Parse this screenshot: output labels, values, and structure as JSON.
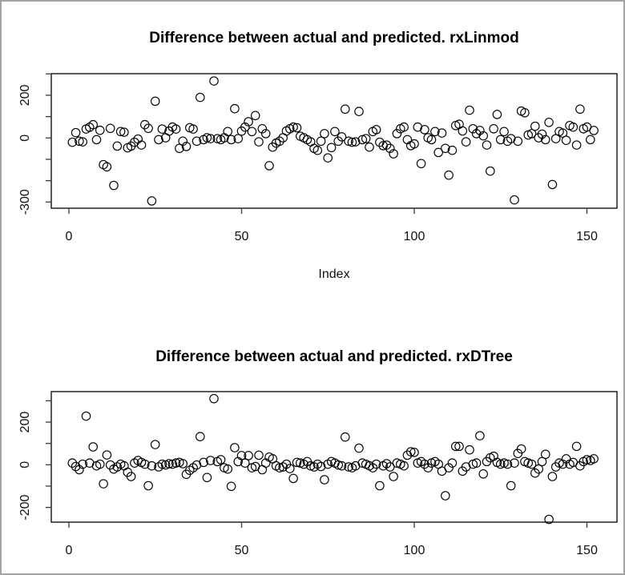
{
  "page": {
    "background": "#ffffff",
    "border_color": "#a3a3a3"
  },
  "chart_data": [
    {
      "type": "scatter",
      "title": "Difference between actual and predicted. rxLinmod",
      "xlabel": "Index",
      "ylabel": "",
      "marker": "open-circle",
      "point_color": "#000000",
      "grid": false,
      "x_ticks": [
        0,
        50,
        100,
        150
      ],
      "x_tick_labels": [
        "0",
        "50",
        "100",
        "150"
      ],
      "y_ticks": [
        300,
        200,
        100,
        0,
        -100,
        -200,
        -300
      ],
      "y_tick_labels": [
        null,
        "200",
        null,
        "0",
        null,
        null,
        "-300"
      ],
      "xlim": [
        -5.1,
        158.7
      ],
      "ylim": [
        -329,
        301
      ],
      "points": [
        [
          1,
          -20
        ],
        [
          2,
          25
        ],
        [
          3,
          -15
        ],
        [
          4,
          -18
        ],
        [
          5,
          42
        ],
        [
          6,
          50
        ],
        [
          7,
          62
        ],
        [
          8,
          -8
        ],
        [
          9,
          36
        ],
        [
          10,
          -125
        ],
        [
          11,
          -135
        ],
        [
          12,
          45
        ],
        [
          13,
          -222
        ],
        [
          14,
          -38
        ],
        [
          15,
          30
        ],
        [
          16,
          27
        ],
        [
          17,
          -46
        ],
        [
          18,
          -38
        ],
        [
          19,
          -20
        ],
        [
          20,
          -5
        ],
        [
          21,
          -33
        ],
        [
          22,
          62
        ],
        [
          23,
          45
        ],
        [
          24,
          -295
        ],
        [
          25,
          172
        ],
        [
          26,
          -8
        ],
        [
          27,
          42
        ],
        [
          28,
          1
        ],
        [
          29,
          32
        ],
        [
          30,
          51
        ],
        [
          31,
          42
        ],
        [
          32,
          -49
        ],
        [
          33,
          -15
        ],
        [
          34,
          -40
        ],
        [
          35,
          48
        ],
        [
          36,
          42
        ],
        [
          37,
          -15
        ],
        [
          38,
          190
        ],
        [
          39,
          -8
        ],
        [
          40,
          1
        ],
        [
          41,
          -3
        ],
        [
          42,
          267
        ],
        [
          43,
          -3
        ],
        [
          44,
          -8
        ],
        [
          45,
          1
        ],
        [
          46,
          30
        ],
        [
          47,
          -8
        ],
        [
          48,
          137
        ],
        [
          49,
          -3
        ],
        [
          50,
          32
        ],
        [
          51,
          51
        ],
        [
          52,
          76
        ],
        [
          53,
          30
        ],
        [
          54,
          105
        ],
        [
          55,
          -18
        ],
        [
          56,
          43
        ],
        [
          57,
          20
        ],
        [
          58,
          -130
        ],
        [
          59,
          -43
        ],
        [
          60,
          -24
        ],
        [
          61,
          -15
        ],
        [
          62,
          1
        ],
        [
          63,
          33
        ],
        [
          64,
          43
        ],
        [
          65,
          51
        ],
        [
          66,
          48
        ],
        [
          67,
          8
        ],
        [
          68,
          1
        ],
        [
          69,
          -8
        ],
        [
          70,
          -18
        ],
        [
          71,
          -49
        ],
        [
          72,
          -58
        ],
        [
          73,
          -15
        ],
        [
          74,
          20
        ],
        [
          75,
          -93
        ],
        [
          76,
          -45
        ],
        [
          77,
          30
        ],
        [
          78,
          -15
        ],
        [
          79,
          5
        ],
        [
          80,
          135
        ],
        [
          81,
          -15
        ],
        [
          82,
          -20
        ],
        [
          83,
          -18
        ],
        [
          84,
          124
        ],
        [
          85,
          -8
        ],
        [
          86,
          -3
        ],
        [
          87,
          -43
        ],
        [
          88,
          30
        ],
        [
          89,
          39
        ],
        [
          90,
          -20
        ],
        [
          91,
          -36
        ],
        [
          92,
          -33
        ],
        [
          93,
          -49
        ],
        [
          94,
          -74
        ],
        [
          95,
          20
        ],
        [
          96,
          43
        ],
        [
          97,
          51
        ],
        [
          98,
          -8
        ],
        [
          99,
          -36
        ],
        [
          100,
          -28
        ],
        [
          101,
          51
        ],
        [
          102,
          -120
        ],
        [
          103,
          39
        ],
        [
          104,
          1
        ],
        [
          105,
          -8
        ],
        [
          106,
          30
        ],
        [
          107,
          -68
        ],
        [
          108,
          23
        ],
        [
          109,
          -49
        ],
        [
          110,
          -174
        ],
        [
          111,
          -58
        ],
        [
          112,
          58
        ],
        [
          113,
          64
        ],
        [
          114,
          33
        ],
        [
          115,
          -18
        ],
        [
          116,
          130
        ],
        [
          117,
          43
        ],
        [
          118,
          20
        ],
        [
          119,
          35
        ],
        [
          120,
          10
        ],
        [
          121,
          -33
        ],
        [
          122,
          -155
        ],
        [
          123,
          43
        ],
        [
          124,
          110
        ],
        [
          125,
          -8
        ],
        [
          126,
          30
        ],
        [
          127,
          -15
        ],
        [
          128,
          -3
        ],
        [
          129,
          -290
        ],
        [
          130,
          -15
        ],
        [
          131,
          126
        ],
        [
          132,
          118
        ],
        [
          133,
          14
        ],
        [
          134,
          20
        ],
        [
          135,
          55
        ],
        [
          136,
          1
        ],
        [
          137,
          18
        ],
        [
          138,
          -8
        ],
        [
          139,
          73
        ],
        [
          140,
          -218
        ],
        [
          141,
          -3
        ],
        [
          142,
          30
        ],
        [
          143,
          23
        ],
        [
          144,
          -11
        ],
        [
          145,
          58
        ],
        [
          146,
          51
        ],
        [
          147,
          -33
        ],
        [
          148,
          135
        ],
        [
          149,
          43
        ],
        [
          150,
          51
        ],
        [
          151,
          -8
        ],
        [
          152,
          35
        ]
      ]
    },
    {
      "type": "scatter",
      "title": "Difference between actual and predicted. rxDTree",
      "xlabel": "",
      "ylabel": "",
      "marker": "open-circle",
      "point_color": "#000000",
      "grid": false,
      "x_ticks": [
        0,
        50,
        100,
        150
      ],
      "x_tick_labels": [
        "0",
        "50",
        "100",
        "150"
      ],
      "y_ticks": [
        300,
        200,
        100,
        0,
        -100,
        -200
      ],
      "y_tick_labels": [
        null,
        "200",
        null,
        "0",
        null,
        "-200"
      ],
      "xlim": [
        -5.1,
        158.7
      ],
      "ylim": [
        -269,
        343
      ],
      "points": [
        [
          1,
          8
        ],
        [
          2,
          -8
        ],
        [
          3,
          -23
        ],
        [
          4,
          3
        ],
        [
          5,
          228
        ],
        [
          6,
          8
        ],
        [
          7,
          84
        ],
        [
          8,
          -5
        ],
        [
          9,
          3
        ],
        [
          10,
          -89
        ],
        [
          11,
          46
        ],
        [
          12,
          -1
        ],
        [
          13,
          -20
        ],
        [
          14,
          -10
        ],
        [
          15,
          3
        ],
        [
          16,
          -5
        ],
        [
          17,
          -35
        ],
        [
          18,
          -55
        ],
        [
          19,
          8
        ],
        [
          20,
          20
        ],
        [
          21,
          11
        ],
        [
          22,
          3
        ],
        [
          23,
          -98
        ],
        [
          24,
          -5
        ],
        [
          25,
          95
        ],
        [
          26,
          -10
        ],
        [
          27,
          3
        ],
        [
          28,
          -1
        ],
        [
          29,
          5
        ],
        [
          30,
          3
        ],
        [
          31,
          8
        ],
        [
          32,
          11
        ],
        [
          33,
          5
        ],
        [
          34,
          -45
        ],
        [
          35,
          -26
        ],
        [
          36,
          -14
        ],
        [
          37,
          -1
        ],
        [
          38,
          132
        ],
        [
          39,
          11
        ],
        [
          40,
          -60
        ],
        [
          41,
          20
        ],
        [
          42,
          310
        ],
        [
          43,
          15
        ],
        [
          44,
          24
        ],
        [
          45,
          -14
        ],
        [
          46,
          -20
        ],
        [
          47,
          -101
        ],
        [
          48,
          80
        ],
        [
          49,
          15
        ],
        [
          50,
          43
        ],
        [
          51,
          8
        ],
        [
          52,
          43
        ],
        [
          53,
          -14
        ],
        [
          54,
          -8
        ],
        [
          55,
          45
        ],
        [
          56,
          -23
        ],
        [
          57,
          8
        ],
        [
          58,
          36
        ],
        [
          59,
          28
        ],
        [
          60,
          -5
        ],
        [
          61,
          -14
        ],
        [
          62,
          -10
        ],
        [
          63,
          3
        ],
        [
          64,
          -18
        ],
        [
          65,
          -64
        ],
        [
          66,
          11
        ],
        [
          67,
          8
        ],
        [
          68,
          3
        ],
        [
          69,
          15
        ],
        [
          70,
          -5
        ],
        [
          71,
          -10
        ],
        [
          72,
          3
        ],
        [
          73,
          -8
        ],
        [
          74,
          -70
        ],
        [
          75,
          3
        ],
        [
          76,
          15
        ],
        [
          77,
          8
        ],
        [
          78,
          -1
        ],
        [
          79,
          -5
        ],
        [
          80,
          130
        ],
        [
          81,
          -10
        ],
        [
          82,
          -14
        ],
        [
          83,
          -5
        ],
        [
          84,
          78
        ],
        [
          85,
          8
        ],
        [
          86,
          3
        ],
        [
          87,
          -5
        ],
        [
          88,
          -14
        ],
        [
          89,
          3
        ],
        [
          90,
          -98
        ],
        [
          91,
          -5
        ],
        [
          92,
          5
        ],
        [
          93,
          -10
        ],
        [
          94,
          -55
        ],
        [
          95,
          8
        ],
        [
          96,
          3
        ],
        [
          97,
          -5
        ],
        [
          98,
          45
        ],
        [
          99,
          61
        ],
        [
          100,
          58
        ],
        [
          101,
          8
        ],
        [
          102,
          15
        ],
        [
          103,
          3
        ],
        [
          104,
          -14
        ],
        [
          105,
          8
        ],
        [
          106,
          15
        ],
        [
          107,
          3
        ],
        [
          108,
          -30
        ],
        [
          109,
          -145
        ],
        [
          110,
          -14
        ],
        [
          111,
          8
        ],
        [
          112,
          86
        ],
        [
          113,
          86
        ],
        [
          114,
          -30
        ],
        [
          115,
          -10
        ],
        [
          116,
          70
        ],
        [
          117,
          3
        ],
        [
          118,
          8
        ],
        [
          119,
          136
        ],
        [
          120,
          -43
        ],
        [
          121,
          15
        ],
        [
          122,
          33
        ],
        [
          123,
          40
        ],
        [
          124,
          11
        ],
        [
          125,
          3
        ],
        [
          126,
          8
        ],
        [
          127,
          3
        ],
        [
          128,
          -98
        ],
        [
          129,
          8
        ],
        [
          130,
          53
        ],
        [
          131,
          74
        ],
        [
          132,
          15
        ],
        [
          133,
          8
        ],
        [
          134,
          3
        ],
        [
          135,
          -39
        ],
        [
          136,
          -20
        ],
        [
          137,
          15
        ],
        [
          138,
          49
        ],
        [
          139,
          -256
        ],
        [
          140,
          -55
        ],
        [
          141,
          -10
        ],
        [
          142,
          8
        ],
        [
          143,
          3
        ],
        [
          144,
          28
        ],
        [
          145,
          3
        ],
        [
          146,
          11
        ],
        [
          147,
          86
        ],
        [
          148,
          -5
        ],
        [
          149,
          15
        ],
        [
          150,
          24
        ],
        [
          151,
          20
        ],
        [
          152,
          28
        ]
      ]
    }
  ]
}
